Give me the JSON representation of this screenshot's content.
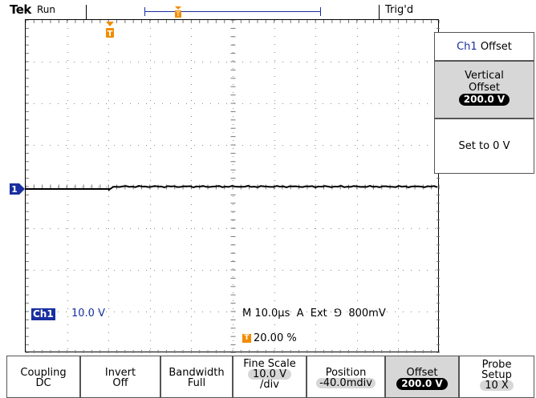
{
  "status": {
    "brand": "Tek",
    "run_state": "Run",
    "trigger_state": "Trig'd",
    "trigger_marker": "T"
  },
  "side_menu": {
    "title_channel": "Ch1",
    "title_label": "Offset",
    "vertical_offset_label_1": "Vertical",
    "vertical_offset_label_2": "Offset",
    "vertical_offset_value": "200.0 V",
    "set_zero_label": "Set to 0 V"
  },
  "readouts": {
    "channel_marker": "1",
    "channel_badge": "Ch1",
    "channel_scale": "10.0 V",
    "timebase": "M 10.0µs  A  Ext  ⅁  800mV",
    "trigger_position": "20.00 %"
  },
  "bottom_menu": {
    "coupling_label": "Coupling",
    "coupling_value": "DC",
    "invert_label": "Invert",
    "invert_value": "Off",
    "bandwidth_label": "Bandwidth",
    "bandwidth_value": "Full",
    "fine_scale_label": "Fine Scale",
    "fine_scale_value": "10.0 V",
    "fine_scale_unit": "/div",
    "position_label": "Position",
    "position_value": "-40.0mdiv",
    "offset_label": "Offset",
    "offset_value": "200.0 V",
    "probe_label_1": "Probe",
    "probe_label_2": "Setup",
    "probe_value": "10 X"
  },
  "colors": {
    "channel1": "#1a2fa0",
    "trigger": "#f08c00",
    "selected": "#d7d7d7"
  }
}
